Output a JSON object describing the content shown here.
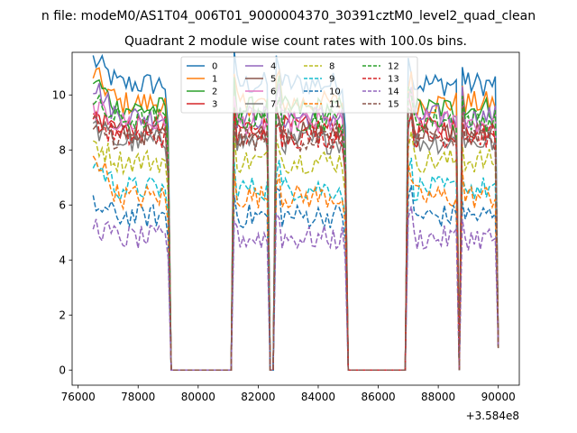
{
  "chart_data": {
    "type": "line",
    "suptitle": "n file: modeM0/AS1T04_006T01_9000004370_30391cztM0_level2_quad_clean",
    "title": "Quadrant 2 module wise count rates with 100.0s bins.",
    "xlabel": "",
    "ylabel": "",
    "x_offset_label": "+3.584e8",
    "xlim": [
      75800,
      90700
    ],
    "ylim": [
      -0.55,
      11.55
    ],
    "x_ticks": [
      {
        "value": 76000,
        "label": "76000"
      },
      {
        "value": 78000,
        "label": "78000"
      },
      {
        "value": 80000,
        "label": "80000"
      },
      {
        "value": 82000,
        "label": "82000"
      },
      {
        "value": 84000,
        "label": "84000"
      },
      {
        "value": 86000,
        "label": "86000"
      },
      {
        "value": 88000,
        "label": "88000"
      },
      {
        "value": 90000,
        "label": "90000"
      }
    ],
    "y_ticks": [
      {
        "value": 0,
        "label": "0"
      },
      {
        "value": 2,
        "label": "2"
      },
      {
        "value": 4,
        "label": "4"
      },
      {
        "value": 6,
        "label": "6"
      },
      {
        "value": 8,
        "label": "8"
      },
      {
        "value": 10,
        "label": "10"
      }
    ],
    "legend_position": "top-center",
    "legend_columns": 4,
    "x_start": 76500,
    "bin_width": 100,
    "num_bins": 136,
    "data_segments": [
      {
        "from": 76500,
        "to": 79000,
        "state": "on"
      },
      {
        "from": 79100,
        "to": 81100,
        "state": "off"
      },
      {
        "from": 81200,
        "to": 82300,
        "state": "on"
      },
      {
        "from": 82400,
        "to": 82500,
        "state": "off"
      },
      {
        "from": 82600,
        "to": 84900,
        "state": "on"
      },
      {
        "from": 85000,
        "to": 86900,
        "state": "off"
      },
      {
        "from": 87000,
        "to": 88600,
        "state": "on"
      },
      {
        "from": 88700,
        "to": 88700,
        "state": "off"
      },
      {
        "from": 88800,
        "to": 89900,
        "state": "on"
      },
      {
        "from": 90000,
        "to": 90000,
        "state": "edge"
      }
    ],
    "series": [
      {
        "name": "0",
        "color": "#1f77b4",
        "dash": "solid",
        "level": 10.4,
        "peak_start": 11.3
      },
      {
        "name": "1",
        "color": "#ff7f0e",
        "dash": "solid",
        "level": 9.7,
        "peak_start": 10.8
      },
      {
        "name": "2",
        "color": "#2ca02c",
        "dash": "solid",
        "level": 9.5,
        "peak_start": 10.6
      },
      {
        "name": "3",
        "color": "#d62728",
        "dash": "solid",
        "level": 8.8,
        "peak_start": 9.3
      },
      {
        "name": "4",
        "color": "#9467bd",
        "dash": "solid",
        "level": 9.2,
        "peak_start": 10.4
      },
      {
        "name": "5",
        "color": "#8c564b",
        "dash": "solid",
        "level": 8.6,
        "peak_start": 9.0
      },
      {
        "name": "6",
        "color": "#e377c2",
        "dash": "solid",
        "level": 9.0,
        "peak_start": 9.5
      },
      {
        "name": "7",
        "color": "#7f7f7f",
        "dash": "solid",
        "level": 8.3,
        "peak_start": 8.8
      },
      {
        "name": "8",
        "color": "#bcbd22",
        "dash": "dashed",
        "level": 7.6,
        "peak_start": 8.3
      },
      {
        "name": "9",
        "color": "#17becf",
        "dash": "dashed",
        "level": 6.6,
        "peak_start": 7.6
      },
      {
        "name": "10",
        "color": "#1f77b4",
        "dash": "dashed",
        "level": 5.6,
        "peak_start": 6.0
      },
      {
        "name": "11",
        "color": "#ff7f0e",
        "dash": "dashed",
        "level": 6.3,
        "peak_start": 8.0
      },
      {
        "name": "12",
        "color": "#2ca02c",
        "dash": "dashed",
        "level": 9.1,
        "peak_start": 9.7
      },
      {
        "name": "13",
        "color": "#d62728",
        "dash": "dashed",
        "level": 8.5,
        "peak_start": 9.0
      },
      {
        "name": "14",
        "color": "#9467bd",
        "dash": "dashed",
        "level": 4.8,
        "peak_start": 5.3
      },
      {
        "name": "15",
        "color": "#8c564b",
        "dash": "dashed",
        "level": 8.4,
        "peak_start": 8.9
      }
    ]
  }
}
